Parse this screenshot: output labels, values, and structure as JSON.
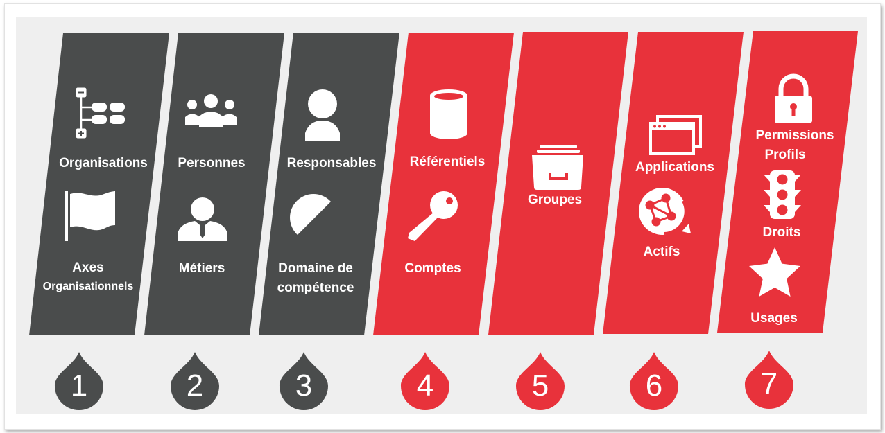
{
  "colors": {
    "dark": "#4a4c4c",
    "red": "#e8323b",
    "white": "#ffffff"
  },
  "columns": [
    {
      "number": "1",
      "color": "dark",
      "labels": [
        "Organisations",
        "Axes",
        "Organisationnels"
      ],
      "icons": [
        "hierarchy-tree-icon",
        "flag-icon"
      ]
    },
    {
      "number": "2",
      "color": "dark",
      "labels": [
        "Personnes",
        "Métiers"
      ],
      "icons": [
        "people-group-icon",
        "business-person-icon"
      ]
    },
    {
      "number": "3",
      "color": "dark",
      "labels": [
        "Responsables",
        "Domaine de",
        "compétence"
      ],
      "icons": [
        "person-icon",
        "domain-circle-icon"
      ]
    },
    {
      "number": "4",
      "color": "red",
      "labels": [
        "Référentiels",
        "Comptes"
      ],
      "icons": [
        "database-cylinder-icon",
        "key-icon"
      ]
    },
    {
      "number": "5",
      "color": "red",
      "labels": [
        "Groupes"
      ],
      "icons": [
        "card-file-box-icon"
      ]
    },
    {
      "number": "6",
      "color": "red",
      "labels": [
        "Applications",
        "Actifs"
      ],
      "icons": [
        "application-windows-icon",
        "network-globe-icon"
      ]
    },
    {
      "number": "7",
      "color": "red",
      "labels": [
        "Permissions",
        "Profils",
        "Droits",
        "Usages"
      ],
      "icons": [
        "padlock-icon",
        "traffic-light-icon",
        "star-icon"
      ]
    }
  ]
}
